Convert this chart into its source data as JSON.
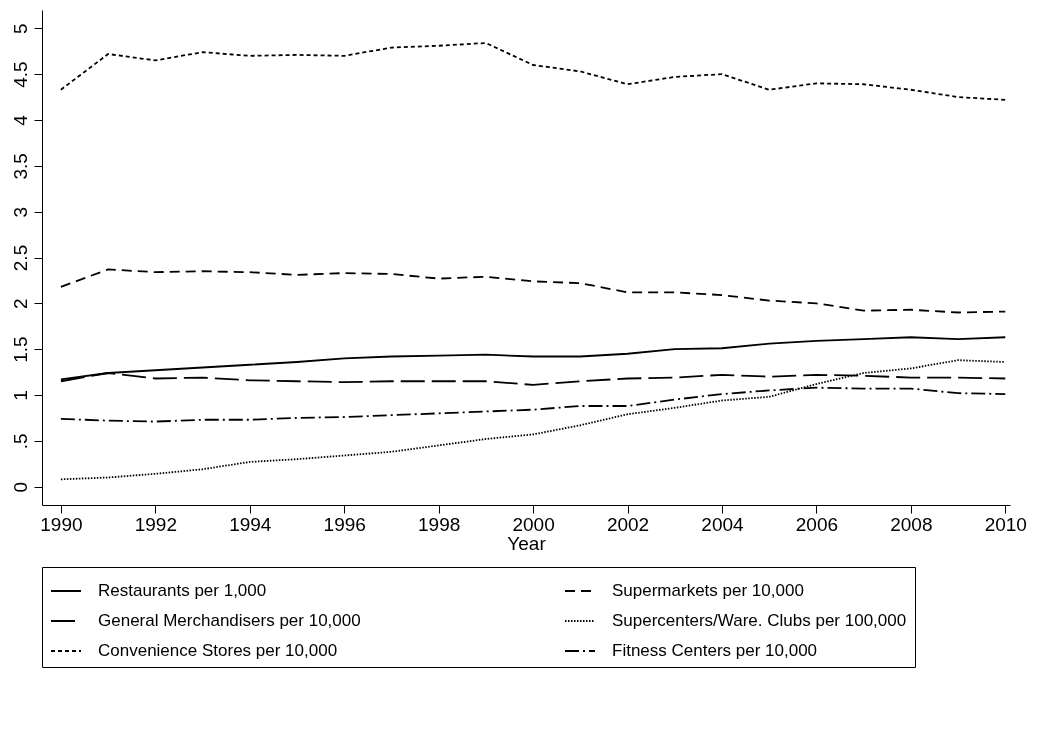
{
  "chart_data": {
    "type": "line",
    "xlabel": "Year",
    "x": [
      1990,
      1991,
      1992,
      1993,
      1994,
      1995,
      1996,
      1997,
      1998,
      1999,
      2000,
      2001,
      2002,
      2003,
      2004,
      2005,
      2006,
      2007,
      2008,
      2009,
      2010
    ],
    "xlim": [
      1989.6,
      2010.1
    ],
    "xticks": [
      1990,
      1992,
      1994,
      1996,
      1998,
      2000,
      2002,
      2004,
      2006,
      2008,
      2010
    ],
    "ylim": [
      -0.2,
      5.2
    ],
    "yticks": [
      0,
      {
        "value": 0.5,
        "label": ".5"
      },
      1,
      1.5,
      2,
      2.5,
      3,
      3.5,
      4,
      4.5,
      5
    ],
    "grid": false,
    "legend": "bottom",
    "marker": "none",
    "series": [
      {
        "name": "Restaurants per 1,000",
        "color": "#000000",
        "line_style": "solid",
        "values": [
          1.17,
          1.24,
          1.27,
          1.3,
          1.33,
          1.36,
          1.4,
          1.42,
          1.43,
          1.44,
          1.42,
          1.42,
          1.45,
          1.5,
          1.51,
          1.56,
          1.59,
          1.61,
          1.63,
          1.61,
          1.63
        ]
      },
      {
        "name": "Supermarkets per 10,000",
        "color": "#000000",
        "line_style": "dashed",
        "values": [
          2.18,
          2.37,
          2.34,
          2.35,
          2.34,
          2.31,
          2.33,
          2.32,
          2.27,
          2.29,
          2.24,
          2.22,
          2.12,
          2.12,
          2.09,
          2.03,
          2.0,
          1.92,
          1.93,
          1.9,
          1.91
        ]
      },
      {
        "name": "General Merchandisers per 10,000",
        "color": "#000000",
        "line_style": "longdash",
        "values": [
          1.15,
          1.24,
          1.18,
          1.19,
          1.16,
          1.15,
          1.14,
          1.15,
          1.15,
          1.15,
          1.11,
          1.15,
          1.18,
          1.19,
          1.22,
          1.2,
          1.22,
          1.21,
          1.19,
          1.19,
          1.18
        ]
      },
      {
        "name": "Supercenters/Ware. Clubs per 100,000",
        "color": "#000000",
        "line_style": "dotted",
        "values": [
          0.08,
          0.1,
          0.14,
          0.19,
          0.27,
          0.3,
          0.34,
          0.38,
          0.45,
          0.52,
          0.57,
          0.67,
          0.79,
          0.86,
          0.94,
          0.98,
          1.12,
          1.24,
          1.29,
          1.38,
          1.36
        ]
      },
      {
        "name": "Convenience Stores per 10,000",
        "color": "#000000",
        "line_style": "shortdash",
        "values": [
          4.33,
          4.72,
          4.65,
          4.74,
          4.7,
          4.71,
          4.7,
          4.79,
          4.81,
          4.84,
          4.6,
          4.53,
          4.39,
          4.47,
          4.5,
          4.33,
          4.4,
          4.39,
          4.33,
          4.25,
          4.22
        ]
      },
      {
        "name": "Fitness Centers per 10,000",
        "color": "#000000",
        "line_style": "dashdot",
        "values": [
          0.74,
          0.72,
          0.71,
          0.73,
          0.73,
          0.75,
          0.76,
          0.78,
          0.8,
          0.82,
          0.84,
          0.88,
          0.88,
          0.95,
          1.01,
          1.05,
          1.08,
          1.07,
          1.07,
          1.02,
          1.01
        ]
      }
    ]
  }
}
